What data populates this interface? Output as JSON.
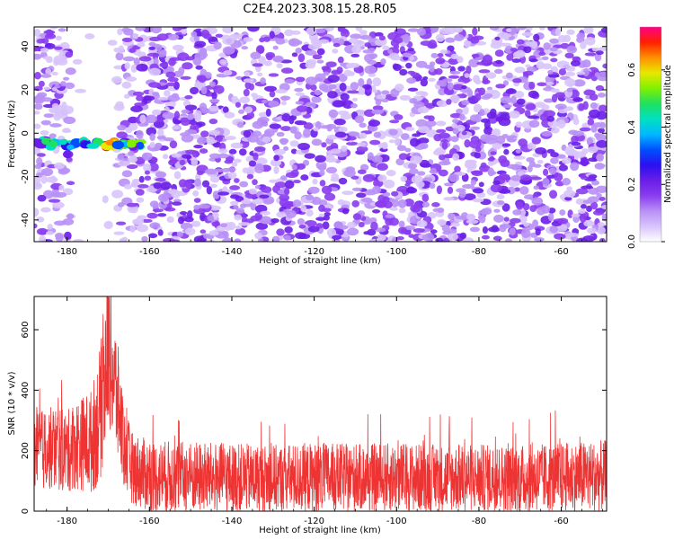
{
  "title": "C2E4.2023.308.15.28.R05",
  "colors": {
    "snr_line": "#ee3333",
    "colormap": [
      "#ffffff",
      "#d8c4fb",
      "#b890f6",
      "#8a3cf0",
      "#6a1ee8",
      "#2a10f0",
      "#0050ff",
      "#00b8ff",
      "#00e0c0",
      "#20e060",
      "#80f000",
      "#e8e800",
      "#ff9000",
      "#ff2000",
      "#ff0088"
    ]
  },
  "chart_data": [
    {
      "type": "heatmap",
      "xlabel": "Height of straight line (km)",
      "ylabel": "Frequency (Hz)",
      "xlim": [
        -188,
        -49
      ],
      "ylim": [
        -50,
        49
      ],
      "x_ticks": [
        -180,
        -160,
        -140,
        -120,
        -100,
        -80,
        -60
      ],
      "y_ticks": [
        -40,
        -20,
        0,
        20,
        40
      ],
      "colorbar": {
        "label": "Normalized spectral amplitude",
        "range": [
          0,
          0.75
        ],
        "ticks": [
          0.0,
          0.2,
          0.4,
          0.6
        ]
      },
      "features": [
        {
          "description_value": "strong band",
          "x_range": [
            -188,
            -162
          ],
          "frequency": -5,
          "amplitude": 0.7
        },
        {
          "description_value": "low-amplitude gap",
          "x_range": [
            -179,
            -168
          ],
          "amplitude": 0.05
        }
      ],
      "background_amplitude": 0.12
    },
    {
      "type": "line",
      "xlabel": "Height of straight line (km)",
      "ylabel": "SNR (10 * v/v)",
      "xlim": [
        -188,
        -49
      ],
      "ylim": [
        0,
        710
      ],
      "x_ticks": [
        -180,
        -160,
        -140,
        -120,
        -100,
        -80,
        -60
      ],
      "y_ticks": [
        0,
        200,
        400,
        600
      ],
      "grid": false,
      "series": [
        {
          "x": [
            -188,
            -185,
            -182,
            -180,
            -178,
            -176,
            -174,
            -172,
            -171,
            -170,
            -169,
            -168,
            -167,
            -166,
            -164,
            -160,
            -150,
            -140,
            -130,
            -120,
            -110,
            -100,
            -90,
            -80,
            -70,
            -60,
            -50
          ],
          "y_center": [
            200,
            205,
            210,
            195,
            220,
            225,
            230,
            320,
            420,
            540,
            470,
            380,
            300,
            200,
            140,
            115,
            112,
            110,
            108,
            112,
            110,
            112,
            110,
            110,
            108,
            112,
            115
          ],
          "y_spread": [
            80,
            85,
            90,
            85,
            95,
            100,
            110,
            140,
            160,
            160,
            150,
            130,
            110,
            85,
            75,
            75,
            75,
            72,
            70,
            72,
            70,
            72,
            70,
            70,
            70,
            72,
            75
          ]
        }
      ]
    }
  ]
}
